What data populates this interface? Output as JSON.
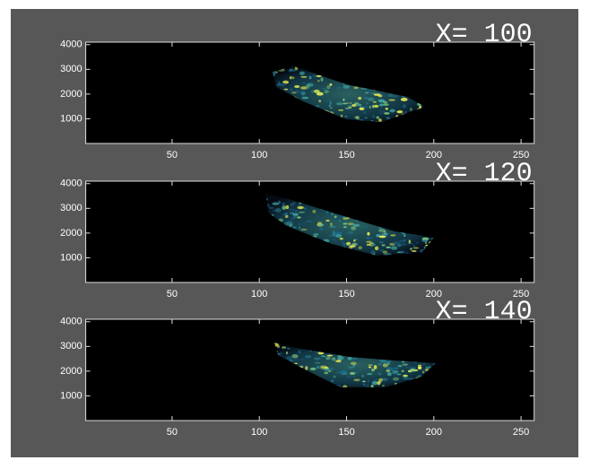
{
  "chart_data": [
    {
      "type": "image",
      "title": "X= 100",
      "xlim": [
        0.5,
        257.5
      ],
      "ylim": [
        0,
        4100
      ],
      "xticks": [
        50,
        100,
        150,
        200,
        250
      ],
      "yticks": [
        1000,
        2000,
        3000,
        4000
      ]
    },
    {
      "type": "image",
      "title": "X= 120",
      "xlim": [
        0.5,
        257.5
      ],
      "ylim": [
        0,
        4100
      ],
      "xticks": [
        50,
        100,
        150,
        200,
        250
      ],
      "yticks": [
        1000,
        2000,
        3000,
        4000
      ]
    },
    {
      "type": "image",
      "title": "X= 140",
      "xlim": [
        0.5,
        257.5
      ],
      "ylim": [
        0,
        4100
      ],
      "xticks": [
        50,
        100,
        150,
        200,
        250
      ],
      "yticks": [
        1000,
        2000,
        3000,
        4000
      ]
    }
  ]
}
